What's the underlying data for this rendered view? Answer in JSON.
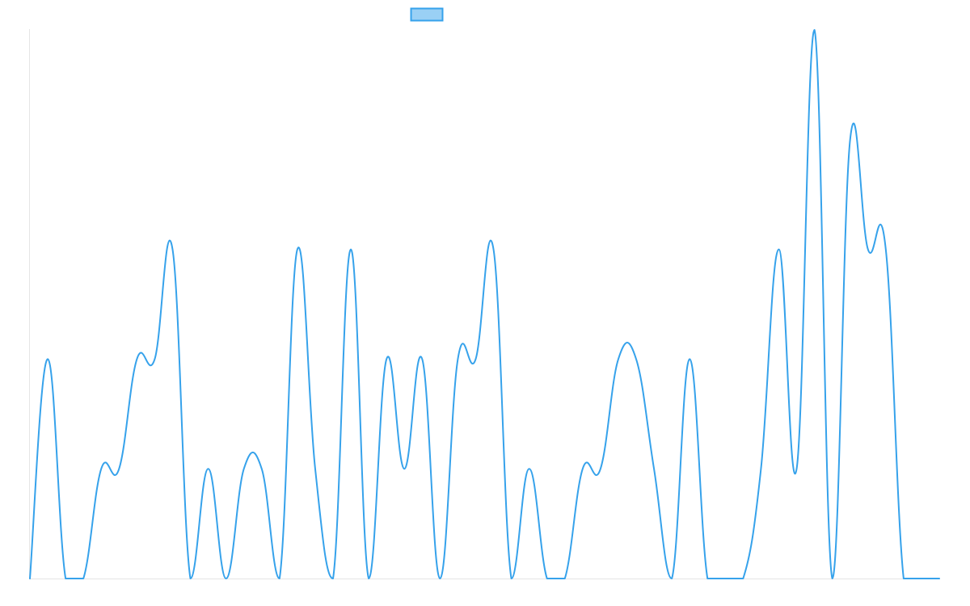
{
  "chart_data": {
    "type": "line",
    "title": "",
    "xlabel": "",
    "ylabel": "",
    "x": [
      0,
      1,
      2,
      3,
      4,
      5,
      6,
      7,
      8,
      9,
      10,
      11,
      12,
      13,
      14,
      15,
      16,
      17,
      18,
      19,
      20,
      21,
      22,
      23,
      24,
      25,
      26,
      27,
      28,
      29,
      30,
      31,
      32,
      33,
      34,
      35,
      36,
      37,
      38,
      39,
      40,
      41,
      42,
      43,
      44,
      45,
      46,
      47,
      48,
      49,
      50,
      51
    ],
    "series": [
      {
        "name": "",
        "color": "#36a2eb",
        "fill_color": "#9ad0f5",
        "values": [
          0,
          2,
          0,
          0,
          1,
          1,
          2,
          2,
          3,
          0,
          1,
          0,
          1,
          1,
          0,
          3,
          1,
          0,
          3,
          0,
          2,
          1,
          2,
          0,
          2,
          2,
          3,
          0,
          1,
          0,
          0,
          1,
          1,
          2,
          2,
          1,
          0,
          2,
          0,
          0,
          0,
          1,
          3,
          1,
          5,
          0,
          4,
          3,
          3,
          0,
          0,
          0
        ]
      }
    ],
    "xlim": [
      0,
      51
    ],
    "ylim": [
      0,
      5
    ],
    "grid": false,
    "legend": "top-center",
    "tension": 0.4
  }
}
